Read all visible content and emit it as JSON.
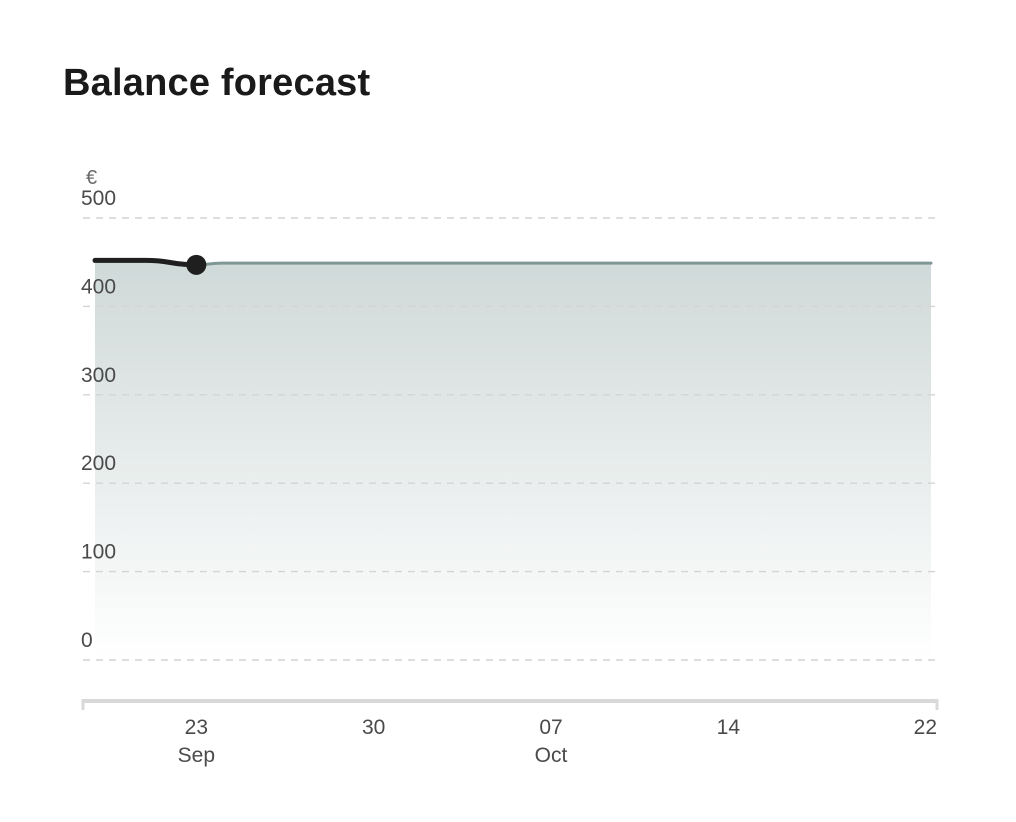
{
  "title": "Balance forecast",
  "chart_data": {
    "type": "area",
    "title": "Balance forecast",
    "y_unit": "€",
    "ylim": [
      0,
      500
    ],
    "yticks": [
      0,
      100,
      200,
      300,
      400,
      500
    ],
    "xlim": [
      "2024-09-19",
      "2024-10-22"
    ],
    "xticks": [
      {
        "date": "2024-09-23",
        "day": "23",
        "month": "Sep"
      },
      {
        "date": "2024-09-30",
        "day": "30",
        "month": ""
      },
      {
        "date": "2024-10-07",
        "day": "07",
        "month": "Oct"
      },
      {
        "date": "2024-10-14",
        "day": "14",
        "month": ""
      },
      {
        "date": "2024-10-22",
        "day": "22",
        "month": ""
      }
    ],
    "grid": true,
    "series": [
      {
        "role": "actual",
        "color": "#1f1f1f",
        "points": [
          {
            "x": "2024-09-19",
            "y": 452
          },
          {
            "x": "2024-09-21",
            "y": 452
          },
          {
            "x": "2024-09-23",
            "y": 447
          }
        ]
      },
      {
        "role": "forecast",
        "color": "#7f9896",
        "points": [
          {
            "x": "2024-09-23",
            "y": 447
          },
          {
            "x": "2024-09-24",
            "y": 449
          },
          {
            "x": "2024-10-22",
            "y": 449
          }
        ]
      }
    ],
    "current_marker": {
      "x": "2024-09-23",
      "y": 447
    },
    "colors": {
      "area_top": "#cfd9d8",
      "area_bottom": "#ffffff",
      "grid": "#d4d4d4",
      "axis": "#d9d9d9"
    }
  }
}
